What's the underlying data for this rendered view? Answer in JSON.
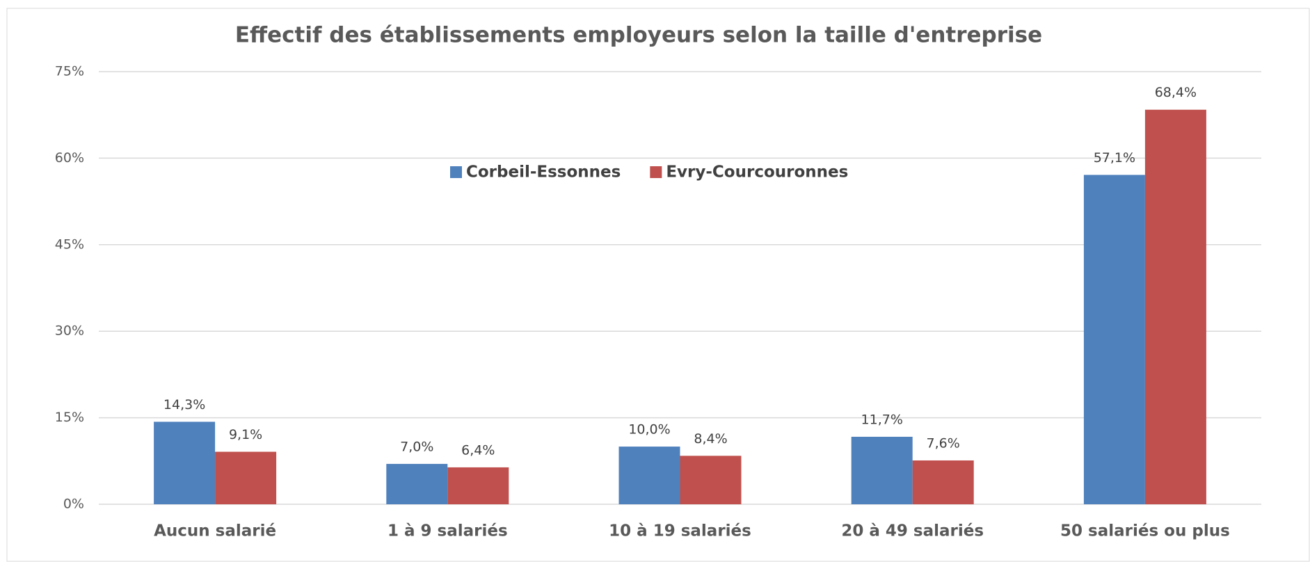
{
  "chart_data": {
    "type": "bar",
    "title": "Effectif des établissements employeurs selon la taille d'entreprise",
    "categories": [
      "Aucun salarié",
      "1 à 9 salariés",
      "10 à 19 salariés",
      "20 à 49 salariés",
      "50 salariés ou plus"
    ],
    "series": [
      {
        "name": "Corbeil-Essonnes",
        "color": "#4f81bd",
        "values": [
          14.3,
          7.0,
          10.0,
          11.7,
          57.1
        ],
        "value_labels": [
          "14,3%",
          "7,0%",
          "10,0%",
          "11,7%",
          "57,1%"
        ]
      },
      {
        "name": "Evry-Courcouronnes",
        "color": "#c0504d",
        "values": [
          9.1,
          6.4,
          8.4,
          7.6,
          68.4
        ],
        "value_labels": [
          "9,1%",
          "6,4%",
          "8,4%",
          "7,6%",
          "68,4%"
        ]
      }
    ],
    "ylim": [
      0,
      75
    ],
    "yticks": [
      {
        "value": 0,
        "label": "0%"
      },
      {
        "value": 15,
        "label": "15%"
      },
      {
        "value": 30,
        "label": "30%"
      },
      {
        "value": 45,
        "label": "45%"
      },
      {
        "value": 60,
        "label": "60%"
      },
      {
        "value": 75,
        "label": "75%"
      }
    ],
    "grid": true,
    "legend": "top"
  }
}
